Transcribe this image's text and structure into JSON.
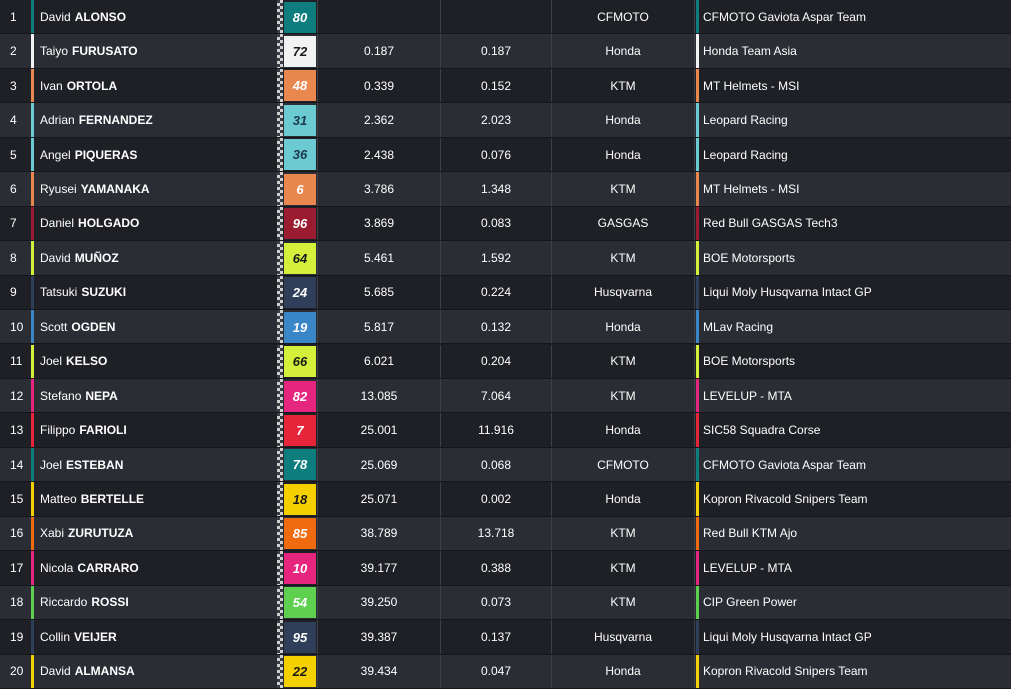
{
  "rows": [
    {
      "pos": "1",
      "first": "David",
      "last": "ALONSO",
      "number": "80",
      "num_bg": "#0e7d7d",
      "num_fg": "#ffffff",
      "gap": "",
      "gap_prev": "",
      "bike": "CFMOTO",
      "team": "CFMOTO Gaviota  Aspar Team",
      "team_color": "#0e7d7d"
    },
    {
      "pos": "2",
      "first": "Taiyo",
      "last": "FURUSATO",
      "number": "72",
      "num_bg": "#f2f2f2",
      "num_fg": "#1a1a1a",
      "gap": "0.187",
      "gap_prev": "0.187",
      "bike": "Honda",
      "team": "Honda Team Asia",
      "team_color": "#f2f2f2"
    },
    {
      "pos": "3",
      "first": "Ivan",
      "last": "ORTOLA",
      "number": "48",
      "num_bg": "#e8874e",
      "num_fg": "#ffffff",
      "gap": "0.339",
      "gap_prev": "0.152",
      "bike": "KTM",
      "team": "MT Helmets - MSI",
      "team_color": "#e8874e"
    },
    {
      "pos": "4",
      "first": "Adrian",
      "last": "FERNANDEZ",
      "number": "31",
      "num_bg": "#6ccad3",
      "num_fg": "#1a3a4a",
      "gap": "2.362",
      "gap_prev": "2.023",
      "bike": "Honda",
      "team": "Leopard Racing",
      "team_color": "#6ccad3"
    },
    {
      "pos": "5",
      "first": "Angel",
      "last": "PIQUERAS",
      "number": "36",
      "num_bg": "#6ccad3",
      "num_fg": "#1a3a4a",
      "gap": "2.438",
      "gap_prev": "0.076",
      "bike": "Honda",
      "team": "Leopard Racing",
      "team_color": "#6ccad3"
    },
    {
      "pos": "6",
      "first": "Ryusei",
      "last": "YAMANAKA",
      "number": "6",
      "num_bg": "#e8874e",
      "num_fg": "#ffffff",
      "gap": "3.786",
      "gap_prev": "1.348",
      "bike": "KTM",
      "team": "MT Helmets - MSI",
      "team_color": "#e8874e"
    },
    {
      "pos": "7",
      "first": "Daniel",
      "last": "HOLGADO",
      "number": "96",
      "num_bg": "#9b1b30",
      "num_fg": "#ffffff",
      "gap": "3.869",
      "gap_prev": "0.083",
      "bike": "GASGAS",
      "team": "Red Bull GASGAS Tech3",
      "team_color": "#9b1b30"
    },
    {
      "pos": "8",
      "first": "David",
      "last": "MUÑOZ",
      "number": "64",
      "num_bg": "#d4f03a",
      "num_fg": "#1a1a1a",
      "gap": "5.461",
      "gap_prev": "1.592",
      "bike": "KTM",
      "team": "BOE Motorsports",
      "team_color": "#d4f03a"
    },
    {
      "pos": "9",
      "first": "Tatsuki",
      "last": "SUZUKI",
      "number": "24",
      "num_bg": "#2f3f5a",
      "num_fg": "#ffffff",
      "gap": "5.685",
      "gap_prev": "0.224",
      "bike": "Husqvarna",
      "team": "Liqui Moly Husqvarna Intact GP",
      "team_color": "#2f3f5a"
    },
    {
      "pos": "10",
      "first": "Scott",
      "last": "OGDEN",
      "number": "19",
      "num_bg": "#3b86c6",
      "num_fg": "#ffffff",
      "gap": "5.817",
      "gap_prev": "0.132",
      "bike": "Honda",
      "team": "MLav Racing",
      "team_color": "#3b86c6"
    },
    {
      "pos": "11",
      "first": "Joel",
      "last": "KELSO",
      "number": "66",
      "num_bg": "#d4f03a",
      "num_fg": "#1a1a1a",
      "gap": "6.021",
      "gap_prev": "0.204",
      "bike": "KTM",
      "team": "BOE Motorsports",
      "team_color": "#d4f03a"
    },
    {
      "pos": "12",
      "first": "Stefano",
      "last": "NEPA",
      "number": "82",
      "num_bg": "#e6257f",
      "num_fg": "#ffffff",
      "gap": "13.085",
      "gap_prev": "7.064",
      "bike": "KTM",
      "team": "LEVELUP - MTA",
      "team_color": "#e6257f"
    },
    {
      "pos": "13",
      "first": "Filippo",
      "last": "FARIOLI",
      "number": "7",
      "num_bg": "#e6253a",
      "num_fg": "#ffffff",
      "gap": "25.001",
      "gap_prev": "11.916",
      "bike": "Honda",
      "team": "SIC58 Squadra Corse",
      "team_color": "#e6253a"
    },
    {
      "pos": "14",
      "first": "Joel",
      "last": "ESTEBAN",
      "number": "78",
      "num_bg": "#0e7d7d",
      "num_fg": "#ffffff",
      "gap": "25.069",
      "gap_prev": "0.068",
      "bike": "CFMOTO",
      "team": "CFMOTO Gaviota  Aspar Team",
      "team_color": "#0e7d7d"
    },
    {
      "pos": "15",
      "first": "Matteo",
      "last": "BERTELLE",
      "number": "18",
      "num_bg": "#f5d000",
      "num_fg": "#1a1a1a",
      "gap": "25.071",
      "gap_prev": "0.002",
      "bike": "Honda",
      "team": "Kopron Rivacold Snipers Team",
      "team_color": "#f5d000"
    },
    {
      "pos": "16",
      "first": "Xabi",
      "last": "ZURUTUZA",
      "number": "85",
      "num_bg": "#f06a10",
      "num_fg": "#ffffff",
      "gap": "38.789",
      "gap_prev": "13.718",
      "bike": "KTM",
      "team": "Red Bull KTM Ajo",
      "team_color": "#f06a10"
    },
    {
      "pos": "17",
      "first": "Nicola",
      "last": "CARRARO",
      "number": "10",
      "num_bg": "#e6257f",
      "num_fg": "#ffffff",
      "gap": "39.177",
      "gap_prev": "0.388",
      "bike": "KTM",
      "team": "LEVELUP - MTA",
      "team_color": "#e6257f"
    },
    {
      "pos": "18",
      "first": "Riccardo",
      "last": "ROSSI",
      "number": "54",
      "num_bg": "#5fcf4f",
      "num_fg": "#ffffff",
      "gap": "39.250",
      "gap_prev": "0.073",
      "bike": "KTM",
      "team": "CIP Green Power",
      "team_color": "#5fcf4f"
    },
    {
      "pos": "19",
      "first": "Collin",
      "last": "VEIJER",
      "number": "95",
      "num_bg": "#2f3f5a",
      "num_fg": "#ffffff",
      "gap": "39.387",
      "gap_prev": "0.137",
      "bike": "Husqvarna",
      "team": "Liqui Moly Husqvarna Intact GP",
      "team_color": "#2f3f5a"
    },
    {
      "pos": "20",
      "first": "David",
      "last": "ALMANSA",
      "number": "22",
      "num_bg": "#f5d000",
      "num_fg": "#1a1a1a",
      "gap": "39.434",
      "gap_prev": "0.047",
      "bike": "Honda",
      "team": "Kopron Rivacold Snipers Team",
      "team_color": "#f5d000"
    }
  ]
}
